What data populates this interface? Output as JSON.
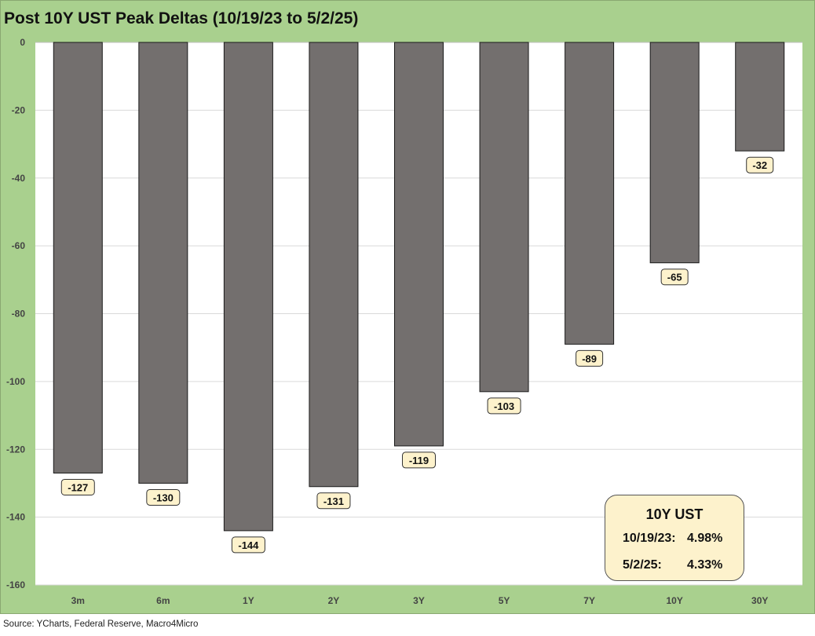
{
  "title": "Post 10Y UST Peak Deltas (10/19/23 to 5/2/25)",
  "source": "Source: YCharts, Federal Reserve, Macro4Micro",
  "colors": {
    "frame_bg": "#a9d08e",
    "plot_bg": "#ffffff",
    "bar": "#736f6e",
    "label_bg": "#fdf2cc",
    "gridline": "#d9d9d9"
  },
  "annotation": {
    "title": "10Y UST",
    "rows": [
      {
        "date": "10/19/23:",
        "value": "4.98%"
      },
      {
        "date": "5/2/25:",
        "value": "4.33%"
      }
    ]
  },
  "chart_data": {
    "type": "bar",
    "categories": [
      "3m",
      "6m",
      "1Y",
      "2Y",
      "3Y",
      "5Y",
      "7Y",
      "10Y",
      "30Y"
    ],
    "values": [
      -127,
      -130,
      -144,
      -131,
      -119,
      -103,
      -89,
      -65,
      -32
    ],
    "ylim": [
      -160,
      0
    ],
    "yticks": [
      0,
      -20,
      -40,
      -60,
      -80,
      -100,
      -120,
      -140,
      -160
    ],
    "grid": true,
    "data_labels": true
  }
}
